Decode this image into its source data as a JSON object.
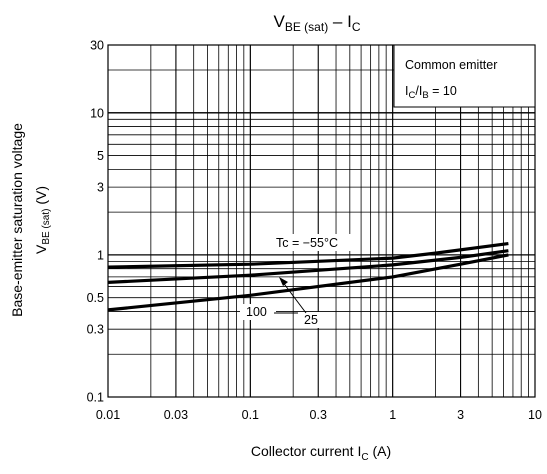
{
  "chart_data": {
    "type": "line",
    "title": {
      "main": "V",
      "sub": "BE (sat)",
      "rest": " – I",
      "sub2": "C"
    },
    "xlabel": {
      "text": "Collector current   I",
      "sub": "C",
      "unit": "   (A)"
    },
    "ylabel": {
      "line1": "Base-emitter saturation voltage",
      "main": "V",
      "sub": "BE (sat)",
      "unit": "   (V)"
    },
    "x_scale": "log",
    "y_scale": "log",
    "xlim": [
      0.01,
      10
    ],
    "ylim": [
      0.1,
      30
    ],
    "grid": true,
    "x_ticks": [
      {
        "value": 0.01,
        "label": "0.01"
      },
      {
        "value": 0.03,
        "label": "0.03"
      },
      {
        "value": 0.1,
        "label": "0.1"
      },
      {
        "value": 0.3,
        "label": "0.3"
      },
      {
        "value": 1,
        "label": "1"
      },
      {
        "value": 3,
        "label": "3"
      },
      {
        "value": 10,
        "label": "10"
      }
    ],
    "y_ticks": [
      {
        "value": 0.1,
        "label": "0.1"
      },
      {
        "value": 0.3,
        "label": "0.3"
      },
      {
        "value": 0.5,
        "label": "0.5"
      },
      {
        "value": 1,
        "label": "1"
      },
      {
        "value": 3,
        "label": "3"
      },
      {
        "value": 5,
        "label": "5"
      },
      {
        "value": 10,
        "label": "10"
      },
      {
        "value": 30,
        "label": "30"
      }
    ],
    "legend": {
      "line1": "Common emitter",
      "line2": {
        "a": "I",
        "a_sub": "C",
        "slash": "/I",
        "b_sub": "B",
        "rest": " = 10"
      },
      "placement": "top-right"
    },
    "series": [
      {
        "name": "Tc = −55°C",
        "x": [
          0.01,
          0.1,
          1,
          2,
          6.5
        ],
        "y": [
          0.82,
          0.86,
          0.95,
          1.03,
          1.2
        ]
      },
      {
        "name": "25",
        "x": [
          0.01,
          0.1,
          1,
          3,
          6.5
        ],
        "y": [
          0.64,
          0.72,
          0.85,
          0.96,
          1.07
        ]
      },
      {
        "name": "100",
        "x": [
          0.01,
          0.1,
          1,
          3,
          6.5
        ],
        "y": [
          0.41,
          0.52,
          0.7,
          0.86,
          1.0
        ]
      }
    ],
    "colors": {
      "line": "#000000",
      "grid": "#000000",
      "background": "#ffffff"
    }
  }
}
